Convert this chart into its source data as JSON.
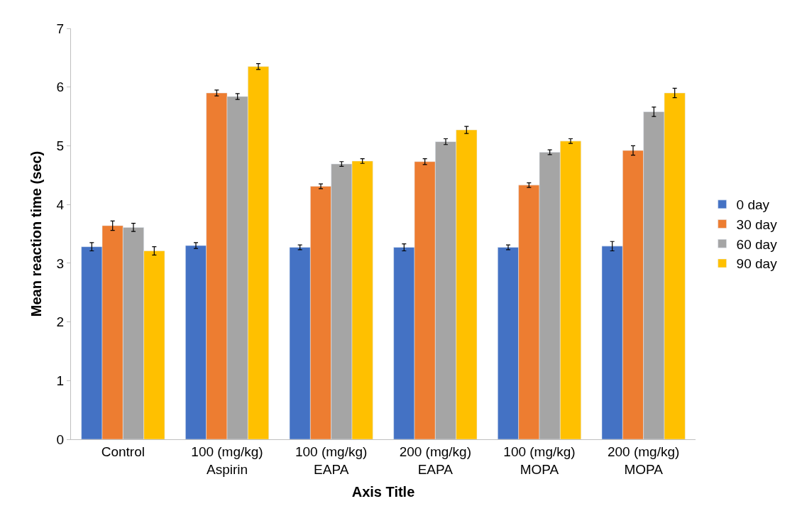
{
  "chart_data": {
    "type": "bar",
    "xlabel": "Axis Title",
    "ylabel": "Mean reaction time (sec)",
    "categories": [
      "Control",
      "100 (mg/kg)\nAspirin",
      "100 (mg/kg)\nEAPA",
      "200 (mg/kg)\nEAPA",
      "100 (mg/kg)\nMOPA",
      "200 (mg/kg)\nMOPA"
    ],
    "series": [
      {
        "name": "0 day",
        "color": "#4472c4",
        "values": [
          3.28,
          3.3,
          3.27,
          3.27,
          3.27,
          3.29
        ],
        "errors": [
          0.07,
          0.05,
          0.04,
          0.06,
          0.04,
          0.08
        ]
      },
      {
        "name": "30 day",
        "color": "#ed7d31",
        "values": [
          3.64,
          5.9,
          4.31,
          4.73,
          4.33,
          4.92
        ],
        "errors": [
          0.08,
          0.05,
          0.04,
          0.05,
          0.04,
          0.08
        ]
      },
      {
        "name": "60 day",
        "color": "#a5a5a5",
        "values": [
          3.61,
          5.84,
          4.69,
          5.07,
          4.89,
          5.58
        ],
        "errors": [
          0.07,
          0.05,
          0.04,
          0.05,
          0.04,
          0.08
        ]
      },
      {
        "name": "90 day",
        "color": "#ffc000",
        "values": [
          3.21,
          6.35,
          4.74,
          5.27,
          5.08,
          5.9
        ],
        "errors": [
          0.07,
          0.05,
          0.04,
          0.06,
          0.04,
          0.08
        ]
      }
    ],
    "ylim": [
      0,
      7
    ],
    "yticks": [
      0,
      1,
      2,
      3,
      4,
      5,
      6,
      7
    ],
    "grid": false,
    "legend": "right"
  }
}
